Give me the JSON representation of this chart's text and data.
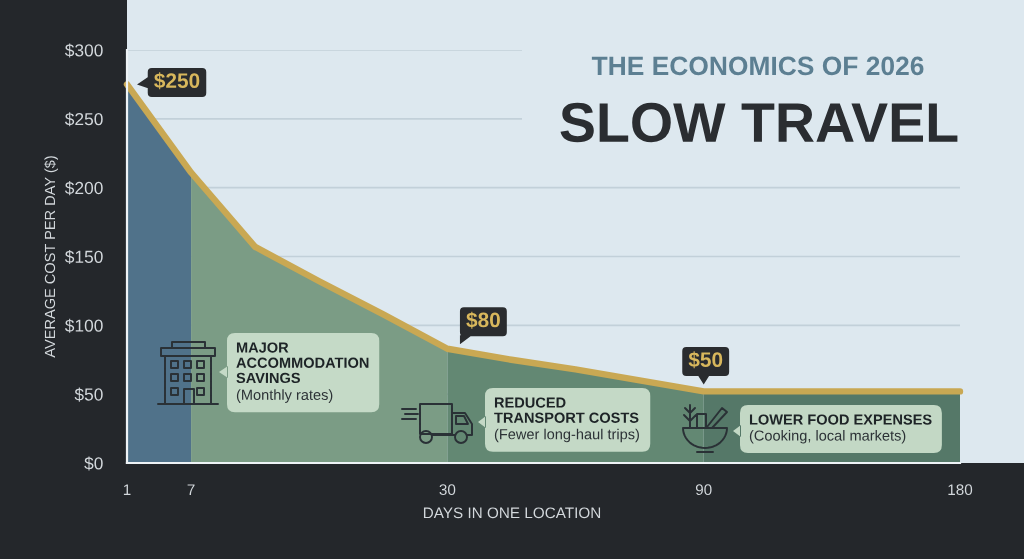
{
  "chart_data": {
    "type": "line",
    "title": "SLOW TRAVEL",
    "subtitle": "THE ECONOMICS OF 2026",
    "xlabel": "DAYS IN ONE LOCATION",
    "ylabel": "AVERAGE COST PER DAY ($)",
    "categories": [
      "1",
      "7",
      null,
      null,
      null,
      "30",
      null,
      null,
      null,
      "90",
      null,
      null,
      null,
      "180"
    ],
    "series": [
      {
        "type": "area",
        "color": "#50728a",
        "values": [
          275,
          211,
          null,
          null,
          null,
          null,
          null,
          null,
          null,
          null,
          null,
          null,
          null,
          null
        ]
      },
      {
        "type": "area",
        "color": "#7b9c85",
        "values": [
          null,
          211,
          157,
          132,
          108,
          83,
          null,
          null,
          null,
          null,
          null,
          null,
          null,
          null
        ]
      },
      {
        "type": "area",
        "color": "#638873",
        "values": [
          null,
          null,
          null,
          null,
          null,
          83,
          75,
          68,
          60,
          52,
          null,
          null,
          null,
          null
        ]
      },
      {
        "type": "area",
        "color": "#557868",
        "values": [
          null,
          null,
          null,
          null,
          null,
          null,
          null,
          null,
          null,
          52,
          52,
          52,
          52,
          52
        ]
      },
      {
        "color": "#c9a853",
        "values": [
          275,
          211,
          157,
          132,
          108,
          83,
          75,
          68,
          60,
          52,
          52,
          52,
          52,
          52
        ]
      }
    ],
    "ylim": [
      0,
      300
    ],
    "yticks": [
      {
        "value": 0,
        "label": "$0"
      },
      {
        "value": 50,
        "label": "$50"
      },
      {
        "value": 100,
        "label": "$100"
      },
      {
        "value": 150,
        "label": "$150"
      },
      {
        "value": 200,
        "label": "$200"
      },
      {
        "value": 250,
        "label": "$250"
      },
      {
        "value": 300,
        "label": "$300"
      }
    ],
    "grid": "y",
    "line_style": "solid",
    "annotations": [
      {
        "text": "$250",
        "x": "1",
        "y": 275
      },
      {
        "text": "$80",
        "x": "30",
        "y": 83
      },
      {
        "text": "$50",
        "x": "90",
        "y": 52
      },
      "MAJOR\nACCOMMODATION\nSAVINGS\n(Monthly rates)",
      "REDUCED\nTRANSPORT COSTS\n(Fewer long-haul trips)",
      "LOWER FOOD EXPENSES\n(Cooking, local markets)"
    ]
  }
}
